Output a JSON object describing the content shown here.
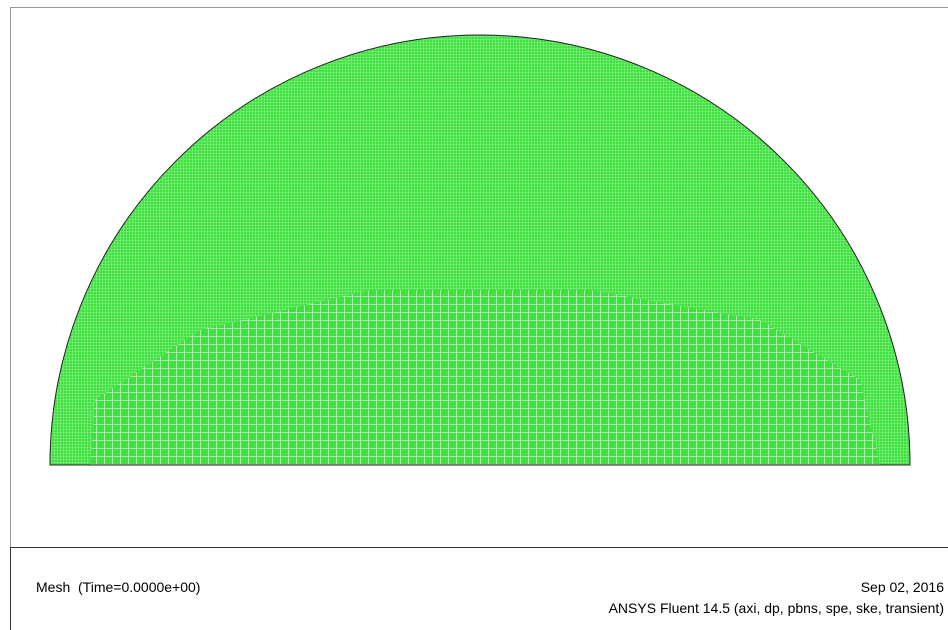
{
  "footer": {
    "left": "Mesh  (Time=0.0000e+00)",
    "date": "Sep 02, 2016",
    "product": "ANSYS Fluent 14.5 (axi, dp, pbns, spe, ske, transient)"
  }
}
